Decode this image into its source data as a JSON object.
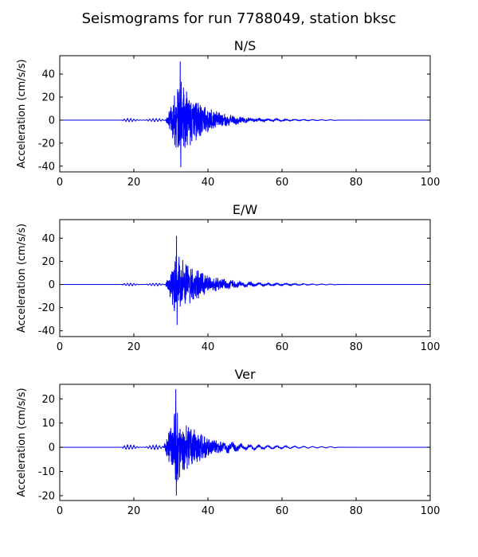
{
  "figure": {
    "title": "Seismograms for run 7788049, station bksc",
    "line_color": "#0000ff"
  },
  "chart_data": [
    {
      "type": "line",
      "title": "N/S",
      "xlabel": "",
      "ylabel": "Acceleration (cm/s/s)",
      "xlim": [
        0,
        100
      ],
      "ylim": [
        -45,
        56
      ],
      "xticks": [
        0,
        20,
        40,
        60,
        80,
        100
      ],
      "yticks": [
        -40,
        -20,
        0,
        20,
        40
      ],
      "grid": false,
      "envelope": {
        "onset": 28.5,
        "peak_time": 32.5,
        "peak": 51,
        "trough": -41,
        "precursor_start": 17,
        "precursor_amp": 1.5,
        "decay": 6.5,
        "tail_amp": 1.2,
        "tail_end": 75,
        "seed": 11
      }
    },
    {
      "type": "line",
      "title": "E/W",
      "xlabel": "",
      "ylabel": "Acceleration (cm/s/s)",
      "xlim": [
        0,
        100
      ],
      "ylim": [
        -45,
        56
      ],
      "xticks": [
        0,
        20,
        40,
        60,
        80,
        100
      ],
      "yticks": [
        -40,
        -20,
        0,
        20,
        40
      ],
      "grid": false,
      "envelope": {
        "onset": 28.5,
        "peak_time": 31.5,
        "peak": 42,
        "trough": -35,
        "precursor_start": 17,
        "precursor_amp": 1.2,
        "decay": 7.0,
        "tail_amp": 1.3,
        "tail_end": 75,
        "seed": 23
      }
    },
    {
      "type": "line",
      "title": "Ver",
      "xlabel": "",
      "ylabel": "Acceleration (cm/s/s)",
      "xlim": [
        0,
        100
      ],
      "ylim": [
        -22,
        26
      ],
      "xticks": [
        0,
        20,
        40,
        60,
        80,
        100
      ],
      "yticks": [
        -20,
        -10,
        0,
        10,
        20
      ],
      "grid": false,
      "envelope": {
        "onset": 28.0,
        "peak_time": 31.3,
        "peak": 24,
        "trough": -20,
        "precursor_start": 17,
        "precursor_amp": 1.0,
        "decay": 6.5,
        "tail_amp": 1.0,
        "tail_end": 75,
        "seed": 37
      }
    }
  ]
}
